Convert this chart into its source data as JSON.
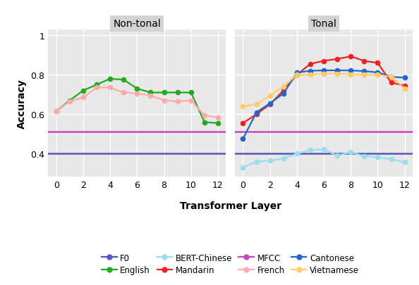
{
  "non_tonal": {
    "layers": [
      0,
      1,
      2,
      3,
      4,
      5,
      6,
      7,
      8,
      9,
      10,
      11,
      12
    ],
    "english": [
      0.615,
      0.67,
      0.72,
      0.75,
      0.78,
      0.775,
      0.73,
      0.71,
      0.71,
      0.71,
      0.71,
      0.56,
      0.555
    ],
    "french": [
      0.615,
      0.665,
      0.685,
      0.735,
      0.735,
      0.71,
      0.705,
      0.695,
      0.67,
      0.665,
      0.67,
      0.595,
      0.583
    ]
  },
  "tonal": {
    "layers": [
      0,
      1,
      2,
      3,
      4,
      5,
      6,
      7,
      8,
      9,
      10,
      11,
      12
    ],
    "mandarin": [
      0.555,
      0.6,
      0.65,
      0.72,
      0.8,
      0.855,
      0.87,
      0.88,
      0.893,
      0.87,
      0.86,
      0.76,
      0.745
    ],
    "cantonese": [
      0.475,
      0.61,
      0.655,
      0.705,
      0.81,
      0.82,
      0.822,
      0.822,
      0.822,
      0.818,
      0.812,
      0.79,
      0.785
    ],
    "vietnamese": [
      0.64,
      0.65,
      0.695,
      0.74,
      0.8,
      0.8,
      0.805,
      0.805,
      0.802,
      0.8,
      0.8,
      0.79,
      0.73
    ],
    "bert_chinese": [
      0.33,
      0.36,
      0.365,
      0.375,
      0.4,
      0.418,
      0.422,
      0.39,
      0.408,
      0.388,
      0.382,
      0.372,
      0.358
    ]
  },
  "f0_value": 0.402,
  "mfcc_value": 0.513,
  "colors": {
    "f0": "#5555bb",
    "mfcc": "#cc44bb",
    "english": "#22aa22",
    "french": "#ffaaaa",
    "mandarin": "#ee2222",
    "cantonese": "#2266cc",
    "vietnamese": "#ffcc66",
    "bert_chinese": "#99ddee"
  },
  "panel_titles": [
    "Non-tonal",
    "Tonal"
  ],
  "xlabel": "Transformer Layer",
  "ylabel": "Accuracy",
  "ylim": [
    0.285,
    1.03
  ],
  "yticks": [
    0.4,
    0.6,
    0.8,
    1.0
  ],
  "ytick_labels": [
    "0.4",
    "0.6",
    "0.8",
    "1"
  ],
  "xticks": [
    0,
    2,
    4,
    6,
    8,
    10,
    12
  ],
  "background_color": "#e8e8e8",
  "panel_title_bg": "#d3d3d3",
  "legend_order": [
    "F0",
    "English",
    "BERT-Chinese",
    "Mandarin",
    "MFCC",
    "French",
    "Cantonese",
    "Vietnamese"
  ],
  "legend_colors": [
    "#5555bb",
    "#22aa22",
    "#99ddee",
    "#ee2222",
    "#cc44bb",
    "#ffaaaa",
    "#2266cc",
    "#ffcc66"
  ]
}
